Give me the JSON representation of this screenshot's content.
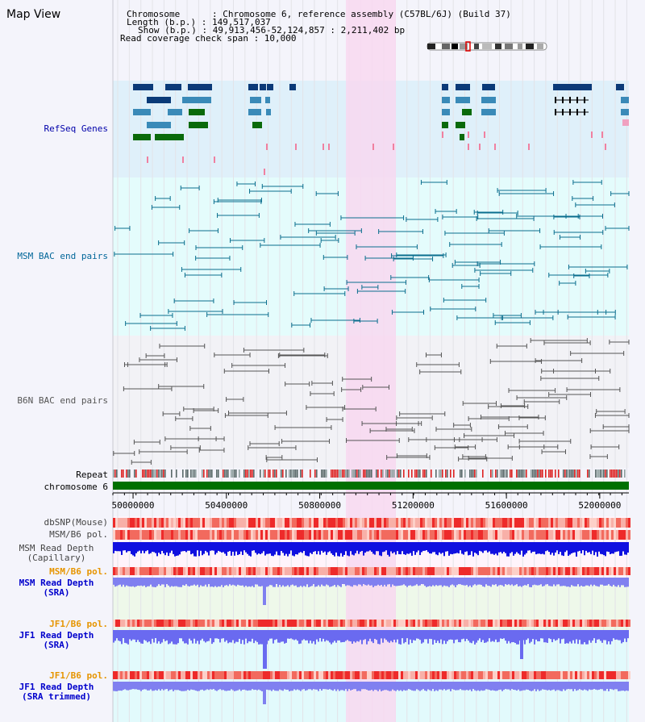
{
  "title": "Map View",
  "info": {
    "chromosome": "Chromosome      : Chromosome 6, reference assembly (C57BL/6J) (Build 37)",
    "length": "Length (b.p.) : 149,517,037",
    "show": "Show (b.p.) : 49,913,456-52,124,857 : 2,211,402 bp",
    "coverage": "Read coverage check span : 10,000"
  },
  "tracks": {
    "refseq": "RefSeq Genes",
    "msm_bac": "MSM BAC end pairs",
    "b6n_bac": "B6N BAC end pairs",
    "repeat": "Repeat",
    "chromosome": "chromosome 6"
  },
  "scale": {
    "ticks": [
      "50000000",
      "50400000",
      "50800000",
      "51200000",
      "51600000",
      "52000000"
    ],
    "tick_values": [
      50000000,
      50400000,
      50800000,
      51200000,
      51600000,
      52000000
    ],
    "start": 49913456,
    "end": 52124857
  },
  "bottom_tracks": {
    "dbsnp": "dbSNP(Mouse)",
    "msm_pol": "MSM/B6 pol.",
    "msm_depth_cap_1": "MSM Read Depth",
    "msm_depth_cap_2": "(Capillary)",
    "msm_pol2": "MSM/B6 pol.",
    "msm_depth_sra_1": "MSM Read Depth",
    "msm_depth_sra_2": "(SRA)",
    "jf1_pol": "JF1/B6 pol.",
    "jf1_depth_1": "JF1 Read Depth",
    "jf1_depth_2": "(SRA)",
    "jf1_pol2": "JF1/B6 pol.",
    "jf1_trim_1": "JF1 Read Depth",
    "jf1_trim_2": "(SRA trimmed)"
  },
  "colors": {
    "refseq_label": "#0000aa",
    "msm_label": "#006699",
    "b6n_label": "#555555",
    "orange_label": "#e69500",
    "blue_label": "#0000cc",
    "highlight": "#f8d8f0"
  }
}
